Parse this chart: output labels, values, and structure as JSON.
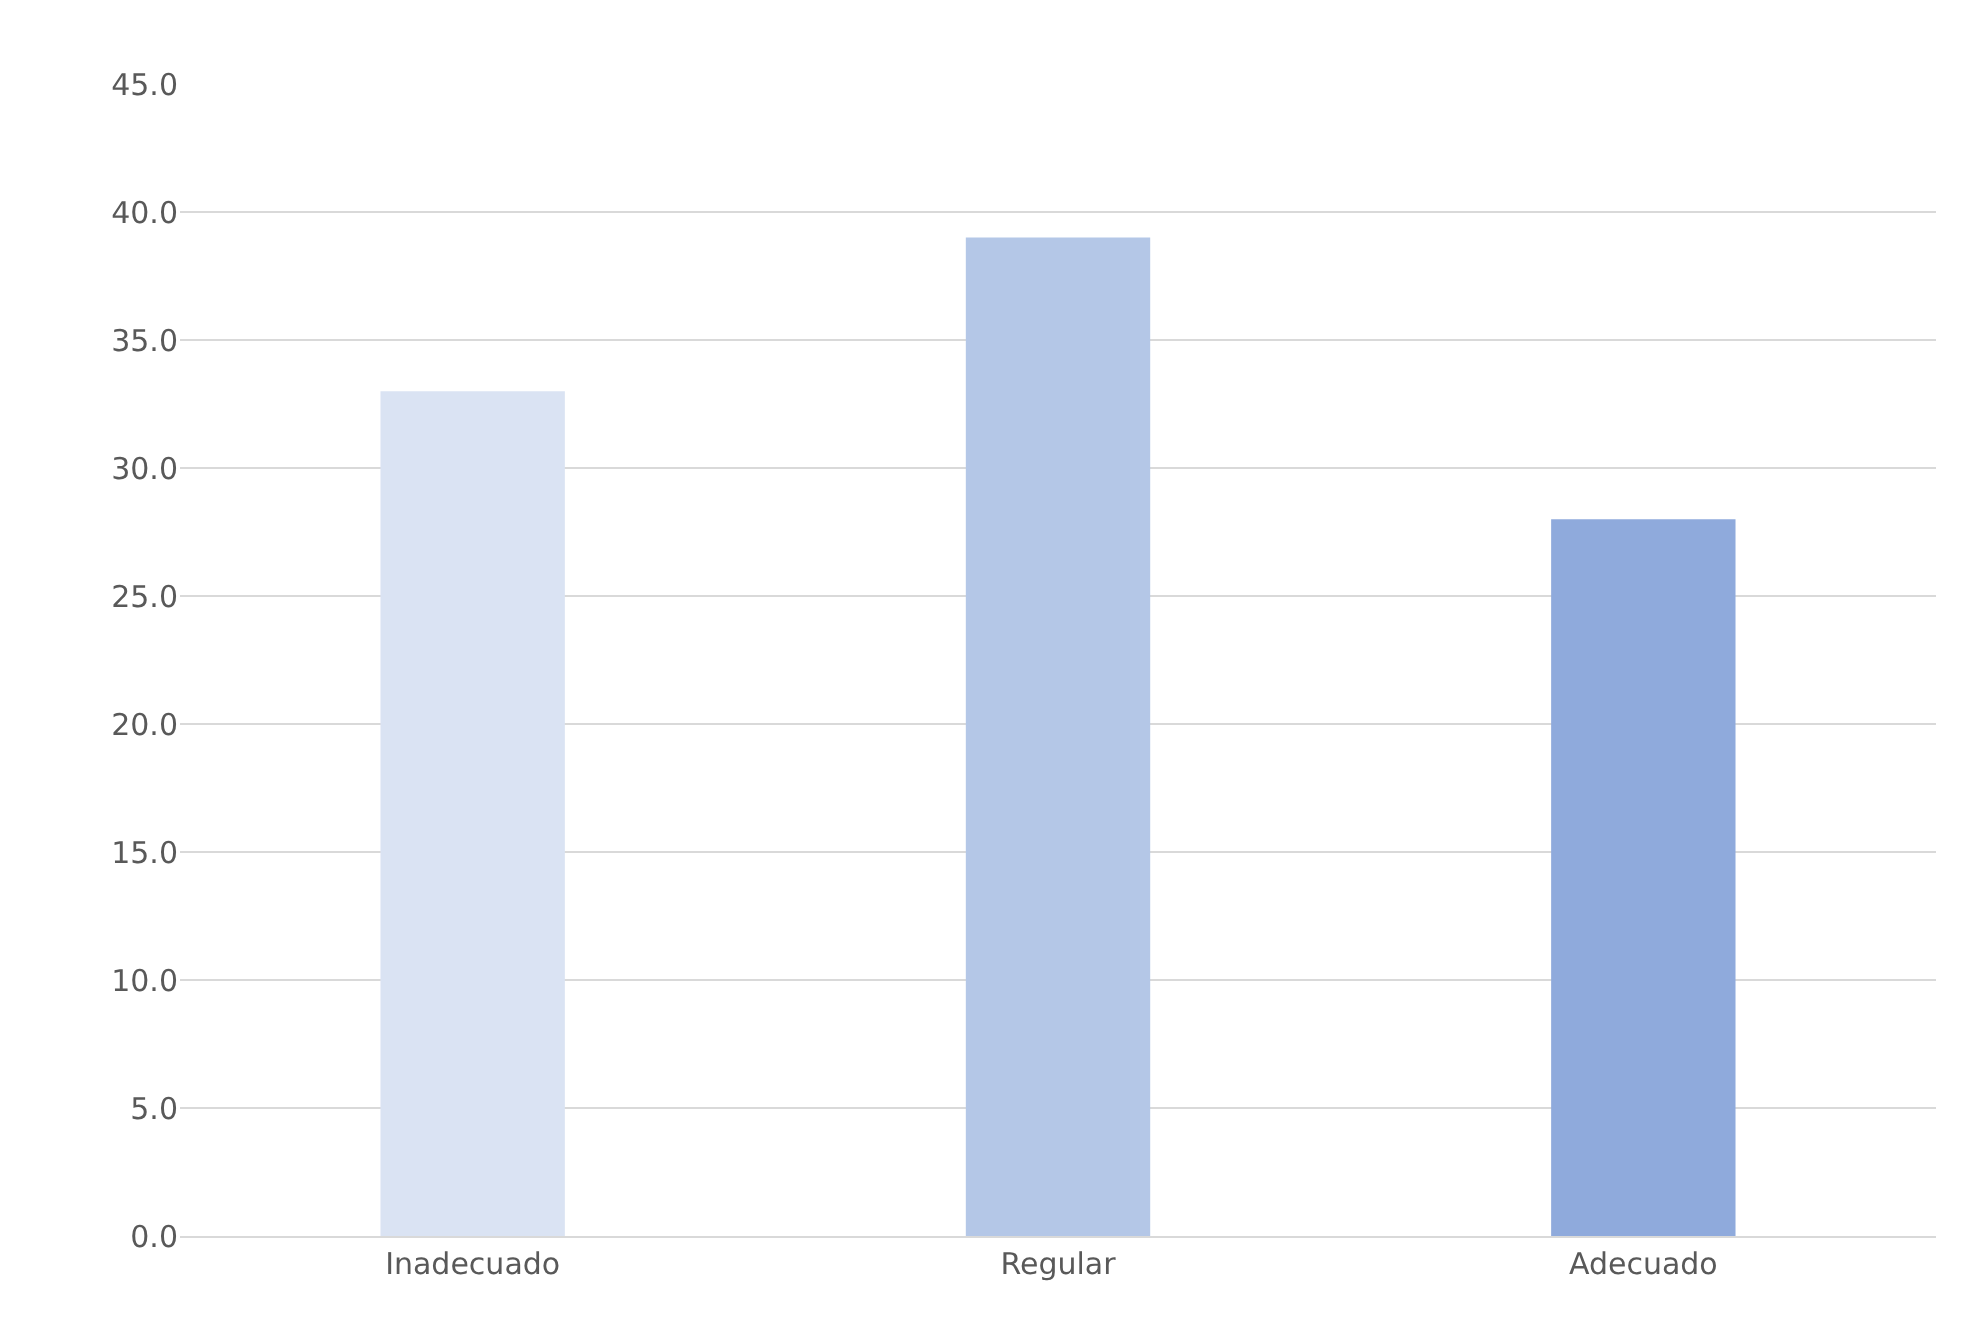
{
  "chart_data": {
    "type": "bar",
    "categories": [
      "Inadecuado",
      "Regular",
      "Adecuado"
    ],
    "values": [
      33.0,
      39.0,
      28.0
    ],
    "colors": [
      "#dae3f3",
      "#b4c7e7",
      "#8faadc"
    ],
    "ylim": [
      0,
      45
    ],
    "yticks": [
      {
        "value": 0,
        "label": "0.0"
      },
      {
        "value": 5,
        "label": "5.0"
      },
      {
        "value": 10,
        "label": "10.0"
      },
      {
        "value": 15,
        "label": "15.0"
      },
      {
        "value": 20,
        "label": "20.0"
      },
      {
        "value": 25,
        "label": "25.0"
      },
      {
        "value": 30,
        "label": "30.0"
      },
      {
        "value": 35,
        "label": "35.0"
      },
      {
        "value": 40,
        "label": "40.0"
      },
      {
        "value": 45,
        "label": "45.0"
      }
    ],
    "grid": "y"
  }
}
